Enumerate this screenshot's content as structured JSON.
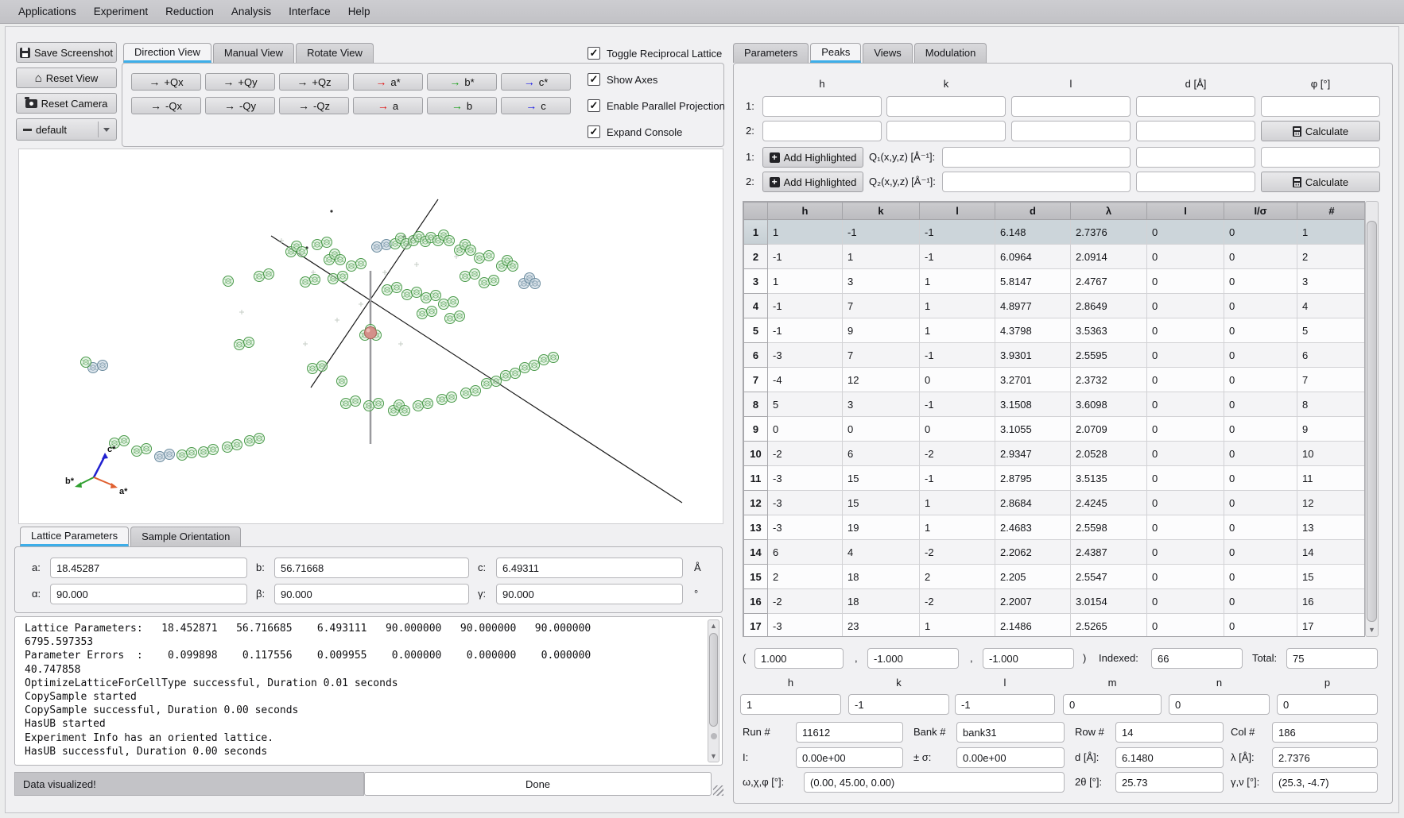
{
  "menu": {
    "items": [
      "Applications",
      "Experiment",
      "Reduction",
      "Analysis",
      "Interface",
      "Help"
    ]
  },
  "toolbar": {
    "save_screenshot": "Save Screenshot",
    "reset_view": "Reset View",
    "reset_camera": "Reset Camera",
    "preset": "default",
    "icons": {
      "save": "floppy-disk",
      "reset_view": "house",
      "reset_camera": "camera",
      "preset": "dash"
    }
  },
  "view_tabs": {
    "items": [
      "Direction View",
      "Manual View",
      "Rotate View"
    ],
    "active": "Direction View"
  },
  "direction_buttons": {
    "rows": [
      [
        {
          "label": "+Qx",
          "color": "#111111"
        },
        {
          "label": "+Qy",
          "color": "#111111"
        },
        {
          "label": "+Qz",
          "color": "#111111"
        },
        {
          "label": "a*",
          "color": "#e01010"
        },
        {
          "label": "b*",
          "color": "#18a018"
        },
        {
          "label": "c*",
          "color": "#1818e8"
        }
      ],
      [
        {
          "label": "-Qx",
          "color": "#111111"
        },
        {
          "label": "-Qy",
          "color": "#111111"
        },
        {
          "label": "-Qz",
          "color": "#111111"
        },
        {
          "label": "a",
          "color": "#e01010"
        },
        {
          "label": "b",
          "color": "#18a018"
        },
        {
          "label": "c",
          "color": "#1818e8"
        }
      ]
    ]
  },
  "options": [
    {
      "label": "Toggle Reciprocal Lattice",
      "checked": true
    },
    {
      "label": "Show Axes",
      "checked": true
    },
    {
      "label": "Enable Parallel Projection",
      "checked": true
    },
    {
      "label": "Expand Console",
      "checked": true
    }
  ],
  "viewport": {
    "axis_labels": {
      "a": "a*",
      "b": "b*",
      "c": "c*"
    },
    "axis_colors": {
      "a": "#e06030",
      "b": "#30a030",
      "c": "#2020d0"
    }
  },
  "right_tabs": {
    "items": [
      "Parameters",
      "Peaks",
      "Views",
      "Modulation"
    ],
    "active": "Peaks"
  },
  "peaks_form": {
    "col_headers": [
      "h",
      "k",
      "l",
      "d [Å]",
      "φ [°]"
    ],
    "row1_label": "1:",
    "row2_label": "2:",
    "calculate": "Calculate",
    "add_highlighted": "Add Highlighted",
    "q1_label": "Q₁(x,y,z) [Å⁻¹]:",
    "q2_label": "Q₂(x,y,z) [Å⁻¹]:"
  },
  "peaks_table": {
    "headers": [
      "h",
      "k",
      "l",
      "d",
      "λ",
      "I",
      "I/σ",
      "#"
    ],
    "selected_row": 1,
    "rows": [
      [
        "1",
        "-1",
        "-1",
        "6.148",
        "2.7376",
        "0",
        "0",
        "1"
      ],
      [
        "-1",
        "1",
        "-1",
        "6.0964",
        "2.0914",
        "0",
        "0",
        "2"
      ],
      [
        "1",
        "3",
        "1",
        "5.8147",
        "2.4767",
        "0",
        "0",
        "3"
      ],
      [
        "-1",
        "7",
        "1",
        "4.8977",
        "2.8649",
        "0",
        "0",
        "4"
      ],
      [
        "-1",
        "9",
        "1",
        "4.3798",
        "3.5363",
        "0",
        "0",
        "5"
      ],
      [
        "-3",
        "7",
        "-1",
        "3.9301",
        "2.5595",
        "0",
        "0",
        "6"
      ],
      [
        "-4",
        "12",
        "0",
        "3.2701",
        "2.3732",
        "0",
        "0",
        "7"
      ],
      [
        "5",
        "3",
        "-1",
        "3.1508",
        "3.6098",
        "0",
        "0",
        "8"
      ],
      [
        "0",
        "0",
        "0",
        "3.1055",
        "2.0709",
        "0",
        "0",
        "9"
      ],
      [
        "-2",
        "6",
        "-2",
        "2.9347",
        "2.0528",
        "0",
        "0",
        "10"
      ],
      [
        "-3",
        "15",
        "-1",
        "2.8795",
        "3.5135",
        "0",
        "0",
        "11"
      ],
      [
        "-3",
        "15",
        "1",
        "2.8684",
        "2.4245",
        "0",
        "0",
        "12"
      ],
      [
        "-3",
        "19",
        "1",
        "2.4683",
        "2.5598",
        "0",
        "0",
        "13"
      ],
      [
        "6",
        "4",
        "-2",
        "2.2062",
        "2.4387",
        "0",
        "0",
        "14"
      ],
      [
        "2",
        "18",
        "2",
        "2.205",
        "2.5547",
        "0",
        "0",
        "15"
      ],
      [
        "-2",
        "18",
        "-2",
        "2.2007",
        "3.0154",
        "0",
        "0",
        "16"
      ],
      [
        "-3",
        "23",
        "1",
        "2.1486",
        "2.5265",
        "0",
        "0",
        "17"
      ]
    ]
  },
  "index_row": {
    "open": "(",
    "comma1": ",",
    "comma2": ",",
    "close": ")",
    "values": [
      "1.000",
      "-1.000",
      "-1.000"
    ],
    "indexed_label": "Indexed:",
    "indexed_value": "66",
    "total_label": "Total:",
    "total_value": "75"
  },
  "hklmnp": {
    "headers": [
      "h",
      "k",
      "l",
      "m",
      "n",
      "p"
    ],
    "values": [
      "1",
      "-1",
      "-1",
      "0",
      "0",
      "0"
    ]
  },
  "peak_details": {
    "rows": [
      [
        {
          "label": "Run #",
          "value": "11612"
        },
        {
          "label": "Bank #",
          "value": "bank31"
        },
        {
          "label": "Row #",
          "value": "14"
        },
        {
          "label": "Col #",
          "value": "186"
        }
      ],
      [
        {
          "label": "I:",
          "value": "0.00e+00"
        },
        {
          "label": "± σ:",
          "value": "0.00e+00"
        },
        {
          "label": "d [Å]:",
          "value": "6.1480"
        },
        {
          "label": "λ [Å]:",
          "value": "2.7376"
        }
      ],
      [
        {
          "label": "ω,χ,φ [°]:",
          "value": "(0.00, 45.00, 0.00)"
        },
        {
          "label": "2θ [°]:",
          "value": "25.73"
        },
        {
          "label": "γ,ν [°]:",
          "value": "(25.3, -4.7)"
        }
      ]
    ]
  },
  "lattice_tabs": {
    "items": [
      "Lattice Parameters",
      "Sample Orientation"
    ],
    "active": "Lattice Parameters"
  },
  "lattice": {
    "row1": [
      {
        "label": "a:",
        "value": "18.45287"
      },
      {
        "label": "b:",
        "value": "56.71668"
      },
      {
        "label": "c:",
        "value": "6.49311"
      }
    ],
    "row2": [
      {
        "label": "α:",
        "value": "90.000"
      },
      {
        "label": "β:",
        "value": "90.000"
      },
      {
        "label": "γ:",
        "value": "90.000"
      }
    ],
    "unit_length": "Å",
    "unit_angle": "°"
  },
  "console": {
    "lines": [
      "Lattice Parameters:   18.452871   56.716685    6.493111   90.000000   90.000000   90.000000",
      "6795.597353",
      "Parameter Errors  :    0.099898    0.117556    0.009955    0.000000    0.000000    0.000000",
      "40.747858",
      "OptimizeLatticeForCellType successful, Duration 0.01 seconds",
      "CopySample started",
      "CopySample successful, Duration 0.00 seconds",
      "HasUB started",
      "Experiment Info has an oriented lattice.",
      "HasUB successful, Duration 0.00 seconds"
    ]
  },
  "status": {
    "message": "Data visualized!",
    "progress": "Done"
  },
  "colors": {
    "accent": "#3daee9",
    "axis_a": "#e01010",
    "axis_b": "#18a018",
    "axis_c": "#1818e8"
  }
}
